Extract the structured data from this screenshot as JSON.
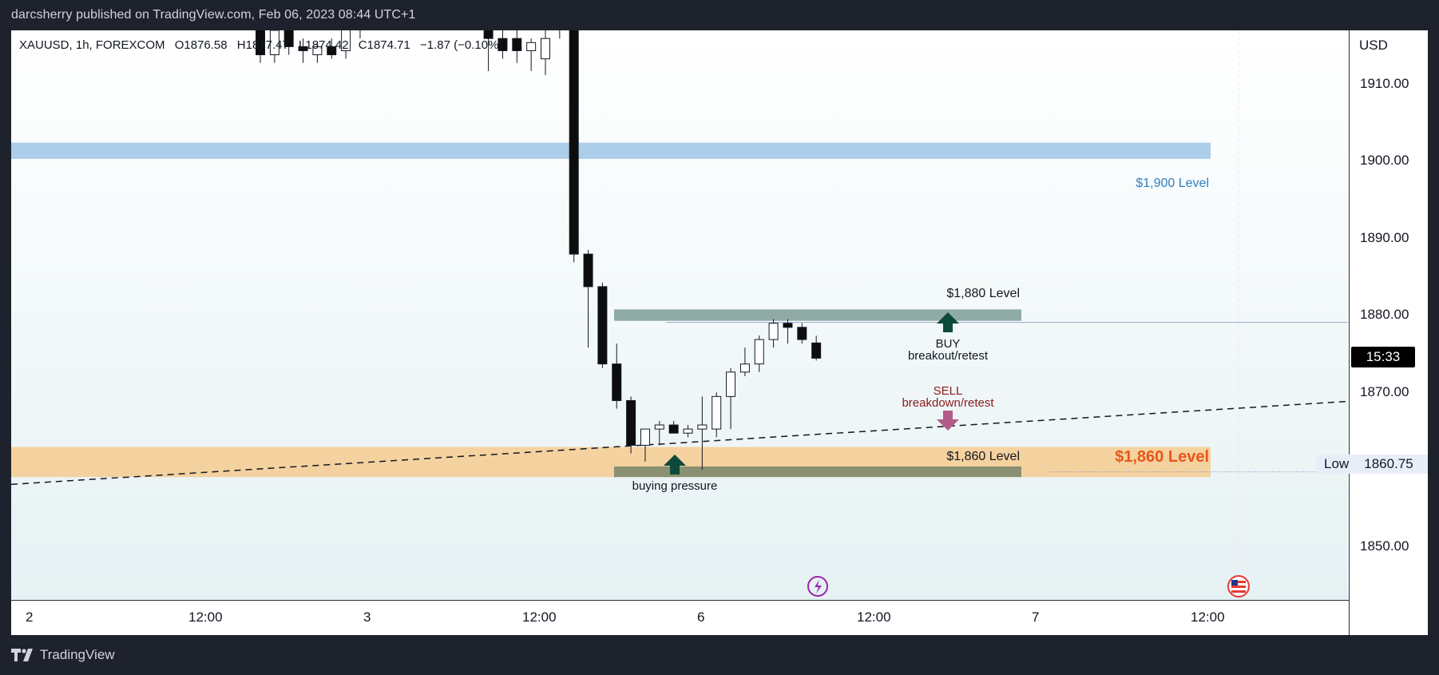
{
  "header": {
    "publisher_line": "darcsherry published on TradingView.com, Feb 06, 2023 08:44 UTC+1"
  },
  "symbol": {
    "name": "XAUUSD, 1h, FOREXCOM",
    "open": "O1876.58",
    "high": "H1877.47",
    "low": "L1874.42",
    "close": "C1874.71",
    "change": "−1.87 (−0.10%)"
  },
  "price_axis": {
    "currency": "USD",
    "ticks": [
      "1910.00",
      "1900.00",
      "1890.00",
      "1880.00",
      "1870.00",
      "1850.00"
    ],
    "countdown": "15:33",
    "low_label": "Low",
    "low_value": "1860.75"
  },
  "time_axis": {
    "ticks": [
      "2",
      "12:00",
      "3",
      "12:00",
      "6",
      "12:00",
      "7",
      "12:00"
    ]
  },
  "annotations": {
    "level_1900": "$1,900 Level",
    "level_1880": "$1,880 Level",
    "level_1860_small": "$1,860 Level",
    "level_1860_big": "$1,860 Level",
    "buy": "BUY",
    "buy_sub": "breakout/retest",
    "sell": "SELL",
    "sell_sub": "breakdown/retest",
    "buying_pressure": "buying pressure"
  },
  "footer": {
    "brand": "TradingView"
  },
  "colors": {
    "level_1900": "#9fc5e8",
    "level_1860_zone": "#f6cb8f",
    "level_1880_box": "#7e9c94",
    "level_1860_box": "#77856a",
    "buy_arrow": "#0c4a3b",
    "sell_arrow": "#b25c8a",
    "label_1900": "#2f81c1",
    "label_1860_big": "#e8571a",
    "sell_text": "#8b1a1a"
  },
  "chart_data": {
    "type": "candlestick",
    "symbol": "XAUUSD",
    "interval": "1h",
    "ylim": [
      1845,
      1915
    ],
    "candles": [
      {
        "t": "Feb 2 22:00",
        "o": 1917,
        "h": 1918,
        "l": 1911,
        "c": 1912
      },
      {
        "t": "Feb 2 23:00",
        "o": 1912,
        "h": 1916,
        "l": 1911,
        "c": 1915
      },
      {
        "t": "Feb 3 00:00",
        "o": 1917,
        "h": 1918,
        "l": 1912,
        "c": 1913
      },
      {
        "t": "Feb 3 01:00",
        "o": 1913,
        "h": 1914,
        "l": 1911,
        "c": 1912.5
      },
      {
        "t": "Feb 3 02:00",
        "o": 1912,
        "h": 1913.5,
        "l": 1911,
        "c": 1913
      },
      {
        "t": "Feb 3 03:00",
        "o": 1913,
        "h": 1914,
        "l": 1911.5,
        "c": 1912
      },
      {
        "t": "Feb 3 04:00",
        "o": 1912.5,
        "h": 1918,
        "l": 1911.5,
        "c": 1916
      },
      {
        "t": "Feb 3 05:00",
        "o": 1916.5,
        "h": 1918,
        "l": 1914,
        "c": 1917
      },
      {
        "t": "Feb 3 06:00",
        "o": 1917,
        "h": 1918,
        "l": 1915,
        "c": 1918
      },
      {
        "t": "Feb 3 07:00",
        "o": 1918,
        "h": 1918.5,
        "l": 1916,
        "c": 1917.5
      },
      {
        "t": "Feb 3 08:00",
        "o": 1917.5,
        "h": 1918,
        "l": 1916.5,
        "c": 1917.5
      },
      {
        "t": "Feb 3 09:00",
        "o": 1917.5,
        "h": 1918.5,
        "l": 1916.5,
        "c": 1918
      },
      {
        "t": "Feb 3 10:00",
        "o": 1918,
        "h": 1918.5,
        "l": 1917,
        "c": 1917
      },
      {
        "t": "Feb 3 11:00",
        "o": 1916.5,
        "h": 1918,
        "l": 1916,
        "c": 1917.5
      },
      {
        "t": "Feb 3 12:00",
        "o": 1917.5,
        "h": 1918,
        "l": 1915.5,
        "c": 1916.5
      },
      {
        "t": "Feb 3 13:00",
        "o": 1916.5,
        "h": 1917.5,
        "l": 1915,
        "c": 1916
      },
      {
        "t": "Feb 3 14:00",
        "o": 1917.5,
        "h": 1918,
        "l": 1910,
        "c": 1914
      },
      {
        "t": "Feb 3 15:00",
        "o": 1914,
        "h": 1915,
        "l": 1911.5,
        "c": 1912.5
      },
      {
        "t": "Feb 3 16:00",
        "o": 1914,
        "h": 1915,
        "l": 1911,
        "c": 1912.5
      },
      {
        "t": "Feb 3 17:00",
        "o": 1912.5,
        "h": 1914,
        "l": 1910,
        "c": 1913.5
      },
      {
        "t": "Feb 3 18:00",
        "o": 1911.5,
        "h": 1916,
        "l": 1909.5,
        "c": 1914
      },
      {
        "t": "Feb 3 19:00",
        "o": 1915.5,
        "h": 1917.5,
        "l": 1914,
        "c": 1916.5
      },
      {
        "t": "Feb 3 20:00",
        "o": 1918,
        "h": 1918.5,
        "l": 1886.5,
        "c": 1887.5
      },
      {
        "t": "Feb 3 21:00",
        "o": 1887.5,
        "h": 1888,
        "l": 1876,
        "c": 1883.5
      },
      {
        "t": "Feb 3 22:00",
        "o": 1883.5,
        "h": 1884,
        "l": 1873.5,
        "c": 1874
      },
      {
        "t": "Feb 5 23:00",
        "o": 1874,
        "h": 1876.5,
        "l": 1868.5,
        "c": 1869.5
      },
      {
        "t": "Feb 6 00:00",
        "o": 1869.5,
        "h": 1870,
        "l": 1863,
        "c": 1864
      },
      {
        "t": "Feb 6 01:00",
        "o": 1864,
        "h": 1866,
        "l": 1862,
        "c": 1866
      },
      {
        "t": "Feb 6 02:00",
        "o": 1866,
        "h": 1867,
        "l": 1864,
        "c": 1866.5
      },
      {
        "t": "Feb 6 03:00",
        "o": 1866.5,
        "h": 1867,
        "l": 1865.5,
        "c": 1865.5
      },
      {
        "t": "Feb 6 04:00",
        "o": 1865.5,
        "h": 1866.5,
        "l": 1865,
        "c": 1866
      },
      {
        "t": "Feb 6 05:00",
        "o": 1866,
        "h": 1870,
        "l": 1861,
        "c": 1866.5
      },
      {
        "t": "Feb 6 06:00",
        "o": 1866,
        "h": 1870.5,
        "l": 1865,
        "c": 1870
      },
      {
        "t": "Feb 6 07:00",
        "o": 1870,
        "h": 1873.5,
        "l": 1866,
        "c": 1873
      },
      {
        "t": "Feb 6 08:00",
        "o": 1873,
        "h": 1876,
        "l": 1872.5,
        "c": 1874
      },
      {
        "t": "Feb 6 09:00",
        "o": 1874,
        "h": 1877.5,
        "l": 1873,
        "c": 1877
      },
      {
        "t": "Feb 6 10:00",
        "o": 1877,
        "h": 1879.5,
        "l": 1876,
        "c": 1879
      },
      {
        "t": "Feb 6 11:00",
        "o": 1879,
        "h": 1879.5,
        "l": 1876.5,
        "c": 1878.5
      },
      {
        "t": "Feb 6 12:00",
        "o": 1878.5,
        "h": 1879,
        "l": 1876.5,
        "c": 1877
      },
      {
        "t": "Feb 6 13:00",
        "o": 1876.58,
        "h": 1877.47,
        "l": 1874.42,
        "c": 1874.71
      }
    ],
    "zones": [
      {
        "from": 1899.2,
        "to": 1901.2
      },
      {
        "from": 1860.1,
        "to": 1863.8
      },
      {
        "from": 1879.3,
        "to": 1880.7
      },
      {
        "from": 1860.1,
        "to": 1861.4
      }
    ],
    "lines": [
      {
        "style": "dashed",
        "from": 1859.2,
        "to": 1869.4
      },
      {
        "style": "solid",
        "at": 1879.1
      },
      {
        "style": "dotted",
        "at": 1860.75
      }
    ]
  }
}
